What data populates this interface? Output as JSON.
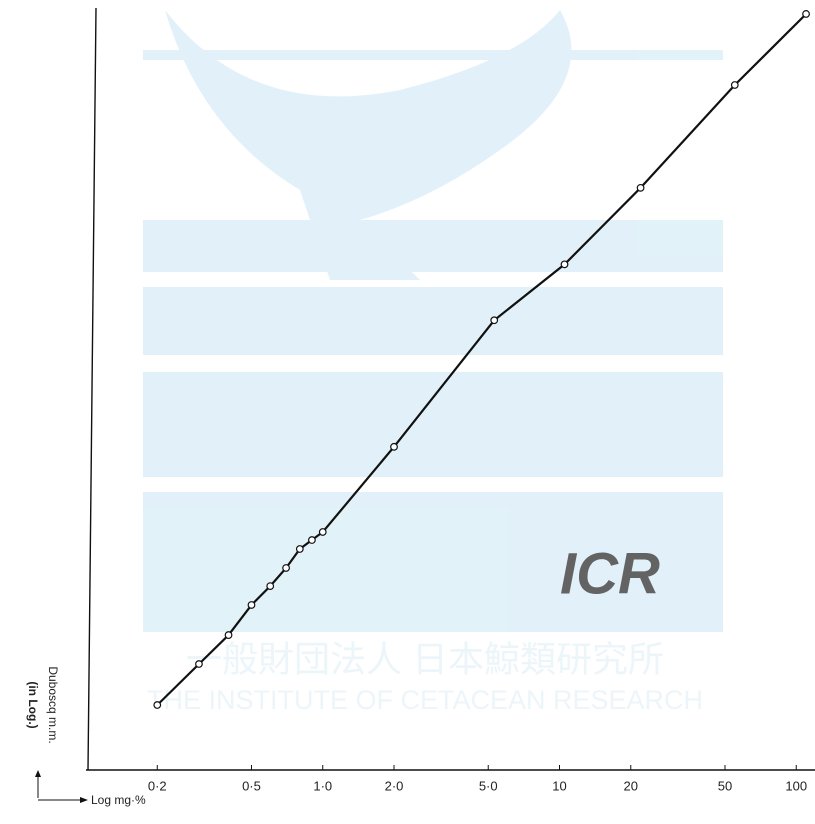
{
  "chart_data": {
    "type": "line",
    "x_label": "Log mg·%",
    "y_label": "Duboscq m.m.",
    "y_label_note": "(in Log.)",
    "watermark": {
      "logo": "ICR",
      "japanese": "一般財団法人 日本鯨類研究所",
      "english": "THE INSTITUTE OF CETACEAN RESEARCH"
    },
    "x_log": true,
    "y_log": true,
    "xlim": [
      0.1,
      120
    ],
    "ylim": [
      1,
      1774
    ],
    "xticks": [
      {
        "value": 0.2,
        "label": "0·2"
      },
      {
        "value": 0.5,
        "label": "0·5"
      },
      {
        "value": 1.0,
        "label": "1·0"
      },
      {
        "value": 2.0,
        "label": "2·0"
      },
      {
        "value": 5.0,
        "label": "5·0"
      },
      10,
      20,
      50,
      100
    ],
    "color": "#111111",
    "x": [
      0.2,
      0.3,
      0.4,
      0.5,
      0.6,
      0.7,
      0.8,
      0.9,
      1.0,
      2.0,
      5.3,
      10.5,
      22,
      55,
      110
    ],
    "values": [
      1.88,
      2.8,
      3.71,
      4.97,
      5.97,
      7.12,
      8.56,
      9.34,
      10.1,
      23.1,
      79,
      136,
      286,
      777,
      1549
    ]
  }
}
